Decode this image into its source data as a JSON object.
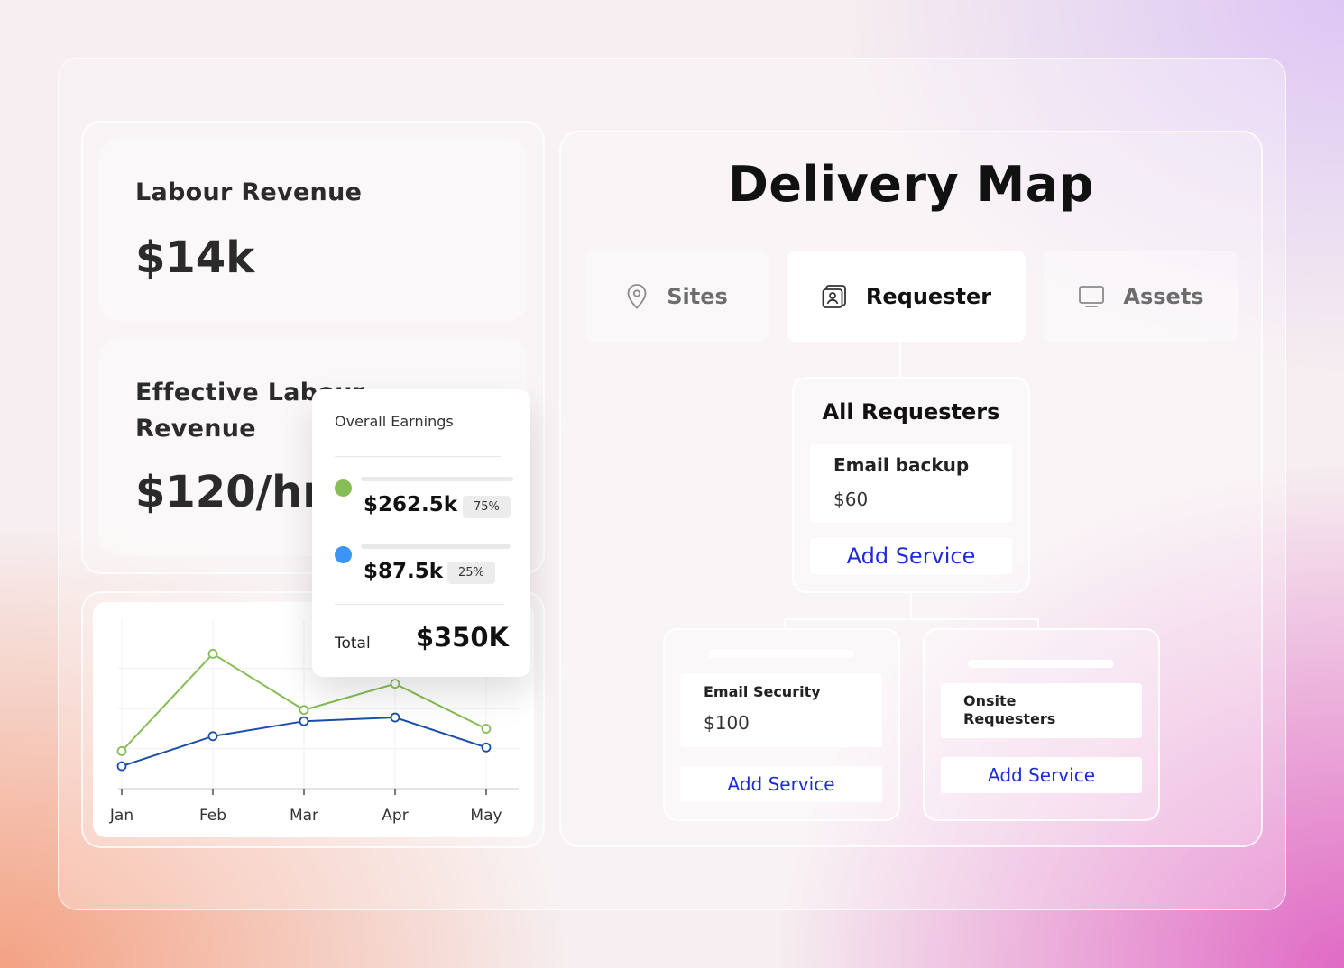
{
  "revenue": {
    "label": "Labour Revenue",
    "value": "$14k"
  },
  "effective": {
    "label_line1": "Effective Labour",
    "label_line2": "Revenue",
    "value": "$120/hr"
  },
  "earnings": {
    "title": "Overall Earnings",
    "items": [
      {
        "amount": "$262.5k",
        "percent": "75%",
        "color": "#86bd56"
      },
      {
        "amount": "$87.5k",
        "percent": "25%",
        "color": "#3b95f6"
      }
    ],
    "total_label": "Total",
    "total_value": "$350K"
  },
  "chart_data": {
    "type": "line",
    "categories": [
      "Jan",
      "Feb",
      "Mar",
      "Apr",
      "May"
    ],
    "series": [
      {
        "values": [
          10,
          36,
          21,
          28,
          16
        ],
        "color": "#86bd56"
      },
      {
        "values": [
          6,
          14,
          18,
          19,
          11
        ],
        "color": "#1b4ea8"
      }
    ],
    "ylim": [
      0,
      45
    ],
    "grid": true
  },
  "map": {
    "title": "Delivery Map",
    "tabs": [
      {
        "label": "Sites",
        "icon": "location-pin-icon"
      },
      {
        "label": "Requester",
        "icon": "contact-card-icon"
      },
      {
        "label": "Assets",
        "icon": "monitor-icon"
      }
    ],
    "all_requesters": {
      "title": "All Requesters",
      "service": "Email backup",
      "price": "$60",
      "add": "Add Service"
    },
    "child1": {
      "service": "Email Security",
      "price": "$100",
      "add": "Add Service"
    },
    "child2": {
      "service_line1": "Onsite",
      "service_line2": "Requesters",
      "add": "Add Service"
    }
  }
}
